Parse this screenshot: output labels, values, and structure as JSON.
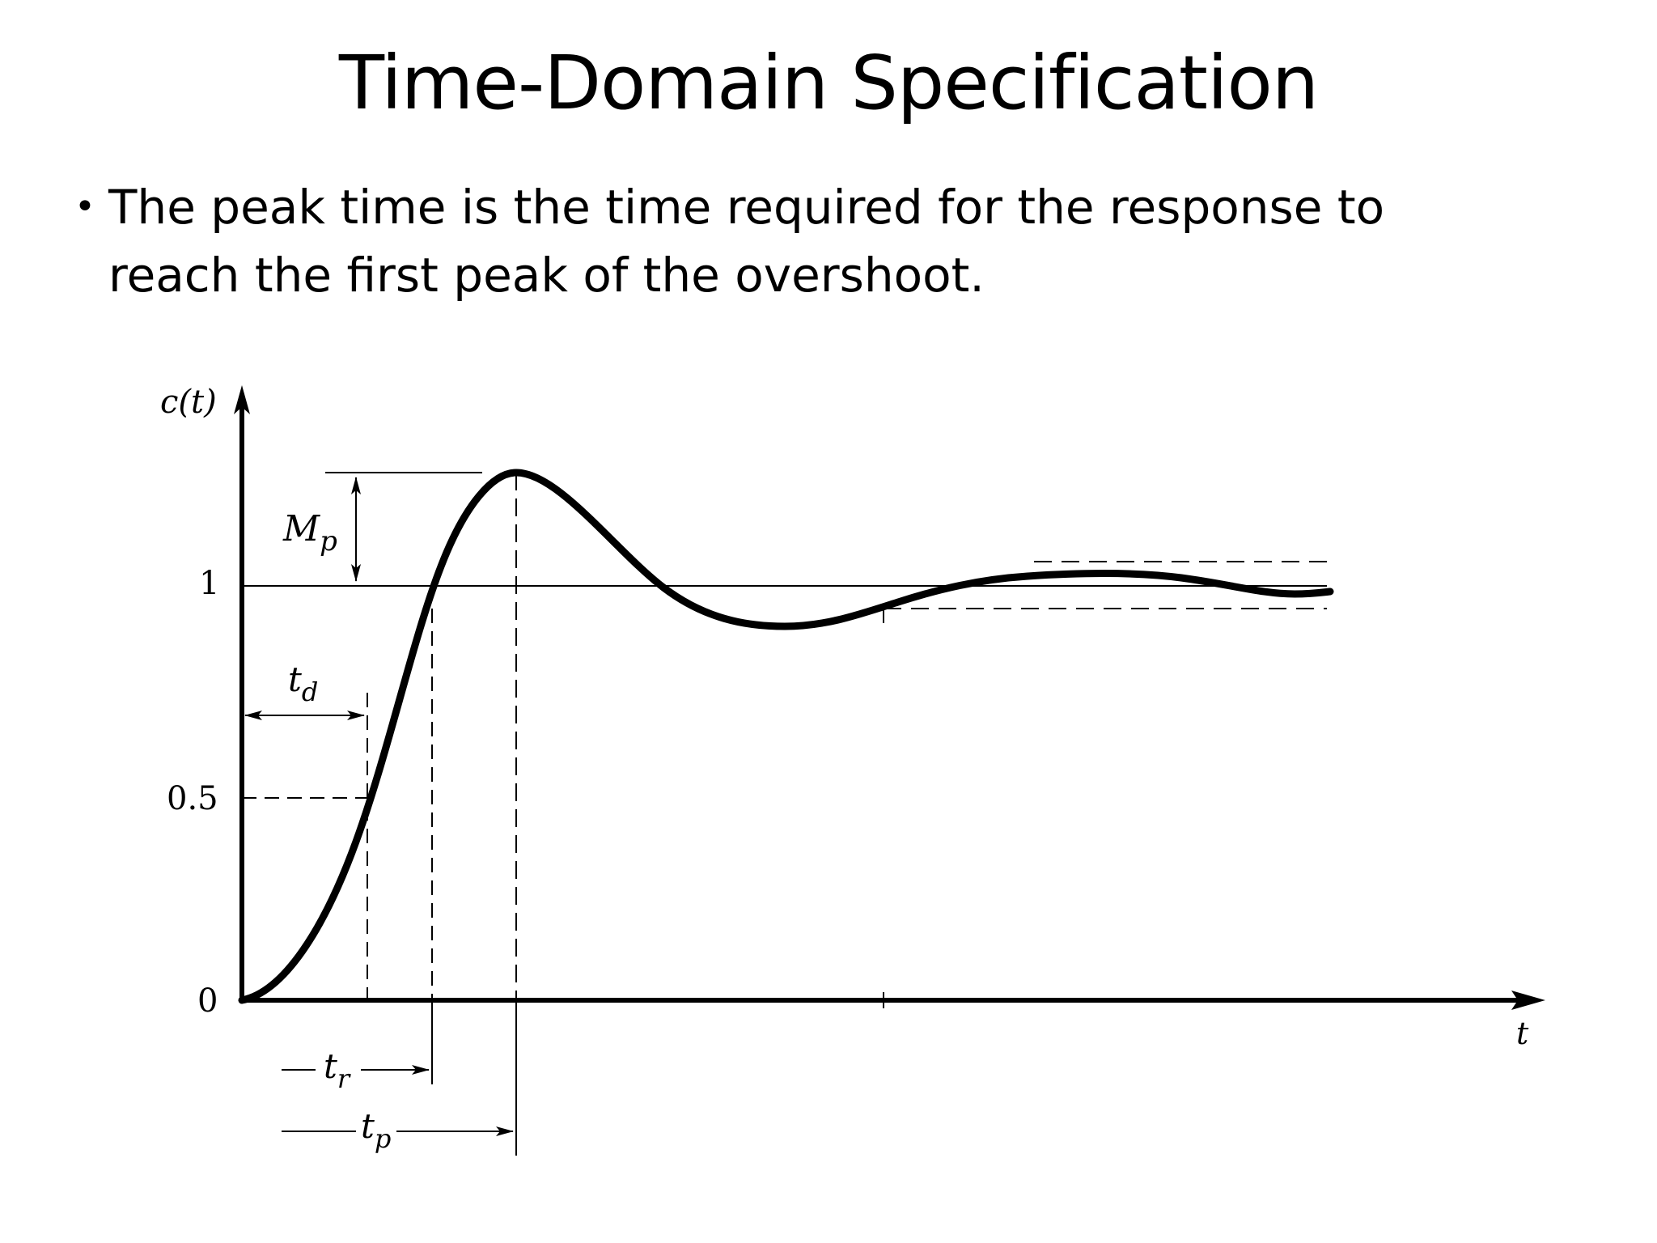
{
  "slide": {
    "title": "Time-Domain Specification",
    "bullet": "The peak time is the time required for the response to reach the first peak of the overshoot."
  },
  "diagram": {
    "y_axis_label": "c(t)",
    "x_axis_label": "t",
    "tick_labels": {
      "one": "1",
      "half": "0.5",
      "zero": "0"
    },
    "annotations": {
      "max_overshoot": {
        "base": "M",
        "sub": "p"
      },
      "delay_time": {
        "base": "t",
        "sub": "d"
      },
      "rise_time": {
        "base": "t",
        "sub": "r"
      },
      "peak_time": {
        "base": "t",
        "sub": "p"
      }
    }
  }
}
